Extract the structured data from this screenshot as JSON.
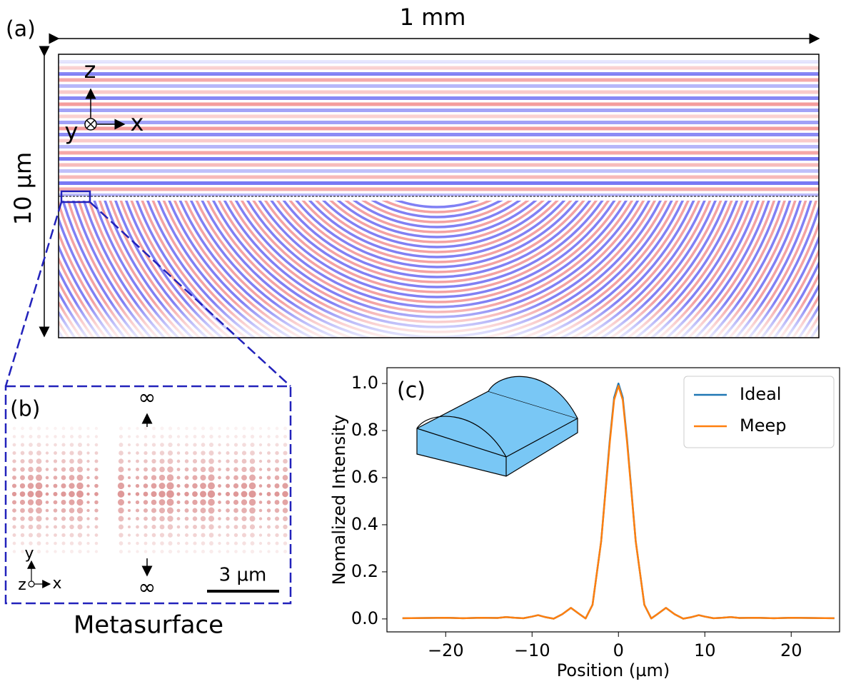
{
  "figure": {
    "panel_a": {
      "label": "(a)",
      "width_label": "1 mm",
      "height_label": "10 µm",
      "axis_z": "z",
      "axis_y": "y",
      "axis_x": "x"
    },
    "panel_b": {
      "label": "(b)",
      "top_symbol": "∞",
      "bottom_symbol": "∞",
      "axis_y": "y",
      "axis_z": "z",
      "axis_x": "x",
      "scale_label": "3 µm",
      "caption": "Metasurface"
    },
    "panel_c": {
      "label": "(c)"
    }
  },
  "chart_data": {
    "type": "line",
    "xlabel": "Position (µm)",
    "ylabel": "Nomalized Intensity",
    "x": [
      -25,
      -22,
      -20,
      -18,
      -16,
      -14,
      -13,
      -12,
      -11,
      -10,
      -9.3,
      -8.5,
      -7.5,
      -6.5,
      -5.5,
      -4.5,
      -3.8,
      -3,
      -2,
      -1,
      -0.5,
      0,
      0.5,
      1,
      2,
      3,
      3.8,
      4.5,
      5.5,
      6.5,
      7.5,
      8.5,
      9.3,
      10,
      11,
      12,
      13,
      14,
      16,
      18,
      20,
      22,
      25
    ],
    "series": [
      {
        "name": "Ideal",
        "color": "#1f77b4",
        "values": [
          0.003,
          0.004,
          0.005,
          0.003,
          0.005,
          0.004,
          0.008,
          0.005,
          0.003,
          0.01,
          0.016,
          0.008,
          0.001,
          0.02,
          0.047,
          0.02,
          0.002,
          0.06,
          0.33,
          0.76,
          0.94,
          1.0,
          0.94,
          0.76,
          0.33,
          0.06,
          0.002,
          0.02,
          0.047,
          0.02,
          0.001,
          0.008,
          0.016,
          0.01,
          0.003,
          0.005,
          0.008,
          0.004,
          0.005,
          0.003,
          0.005,
          0.004,
          0.003
        ]
      },
      {
        "name": "Meep",
        "color": "#ff7f0e",
        "values": [
          0.003,
          0.004,
          0.005,
          0.003,
          0.005,
          0.004,
          0.008,
          0.005,
          0.003,
          0.01,
          0.016,
          0.008,
          0.001,
          0.02,
          0.047,
          0.02,
          0.002,
          0.06,
          0.33,
          0.75,
          0.93,
          0.99,
          0.93,
          0.75,
          0.33,
          0.06,
          0.002,
          0.02,
          0.047,
          0.02,
          0.001,
          0.008,
          0.016,
          0.01,
          0.003,
          0.005,
          0.008,
          0.004,
          0.005,
          0.003,
          0.005,
          0.004,
          0.003
        ]
      }
    ],
    "xlim": [
      -26.8,
      25.6
    ],
    "ylim": [
      -0.055,
      1.067
    ],
    "xticks": [
      {
        "value": -20,
        "label": "−20"
      },
      {
        "value": -10,
        "label": "−10"
      },
      0,
      10,
      20
    ],
    "yticks": [
      {
        "value": 0,
        "label": "0.0"
      },
      {
        "value": 0.2,
        "label": "0.2"
      },
      {
        "value": 0.4,
        "label": "0.4"
      },
      {
        "value": 0.6,
        "label": "0.6"
      },
      {
        "value": 0.8,
        "label": "0.8"
      },
      {
        "value": 1,
        "label": "1.0"
      }
    ],
    "legend": "upper right"
  }
}
